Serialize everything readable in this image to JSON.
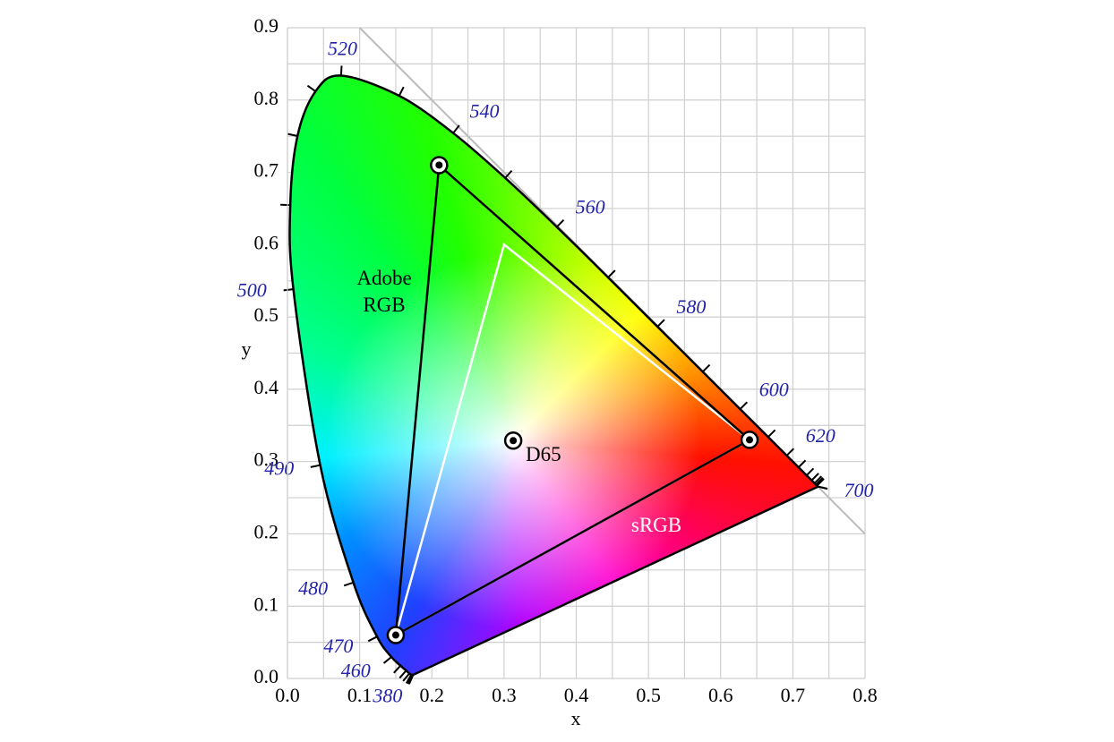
{
  "chart_data": {
    "type": "chromaticity",
    "x_label": "x",
    "y_label": "y",
    "xlim": [
      0,
      0.8
    ],
    "ylim": [
      0,
      0.9
    ],
    "xticks": [
      {
        "value": 0,
        "label": "0.0"
      },
      0.1,
      0.2,
      0.3,
      0.4,
      0.5,
      0.6,
      0.7,
      0.8
    ],
    "yticks": [
      {
        "value": 0,
        "label": "0.0"
      },
      0.1,
      0.2,
      0.3,
      0.4,
      0.5,
      0.6,
      0.7,
      0.8,
      0.9
    ],
    "x_minor_ticks": [
      0.05,
      0.15,
      0.25,
      0.35,
      0.45,
      0.55,
      0.65,
      0.75
    ],
    "y_minor_ticks": [
      0.05,
      0.15,
      0.25,
      0.35,
      0.45,
      0.55,
      0.65,
      0.75,
      0.85
    ],
    "grid": true,
    "spectral_locus": {
      "color": "#000000",
      "label_color": "#2222aa",
      "x": [
        0.1741,
        0.1738,
        0.1733,
        0.1726,
        0.1714,
        0.1689,
        0.1644,
        0.1566,
        0.144,
        0.1241,
        0.0913,
        0.0454,
        0.0082,
        0.0039,
        0.0139,
        0.0389,
        0.0743,
        0.1547,
        0.2296,
        0.3016,
        0.3731,
        0.4441,
        0.5125,
        0.5752,
        0.627,
        0.6658,
        0.6915,
        0.7079,
        0.719,
        0.726,
        0.73,
        0.732,
        0.7334,
        0.7344,
        0.7347
      ],
      "y": [
        0.005,
        0.0049,
        0.0048,
        0.0048,
        0.0051,
        0.0069,
        0.0109,
        0.0177,
        0.0297,
        0.0578,
        0.1327,
        0.295,
        0.5384,
        0.6548,
        0.7502,
        0.812,
        0.8338,
        0.8059,
        0.7543,
        0.6923,
        0.6245,
        0.5547,
        0.4866,
        0.4242,
        0.3725,
        0.334,
        0.3083,
        0.292,
        0.2809,
        0.274,
        0.27,
        0.268,
        0.2666,
        0.2656,
        0.2653
      ],
      "wavelength_labels": [
        380,
        null,
        null,
        null,
        null,
        null,
        null,
        null,
        460,
        470,
        480,
        490,
        500,
        null,
        null,
        null,
        520,
        null,
        540,
        null,
        560,
        null,
        580,
        null,
        600,
        null,
        620,
        null,
        null,
        null,
        null,
        null,
        null,
        null,
        700
      ]
    },
    "gamuts": [
      {
        "name": "Adobe RGB",
        "color": "#000000",
        "x": [
          0.64,
          0.21,
          0.15
        ],
        "y": [
          0.33,
          0.71,
          0.06
        ],
        "markers": true
      },
      {
        "name": "sRGB",
        "color": "#ffffff",
        "x": [
          0.64,
          0.3,
          0.15
        ],
        "y": [
          0.33,
          0.6,
          0.06
        ],
        "markers": false
      }
    ],
    "white_point": {
      "name": "D65",
      "x": 0.3127,
      "y": 0.329
    }
  }
}
